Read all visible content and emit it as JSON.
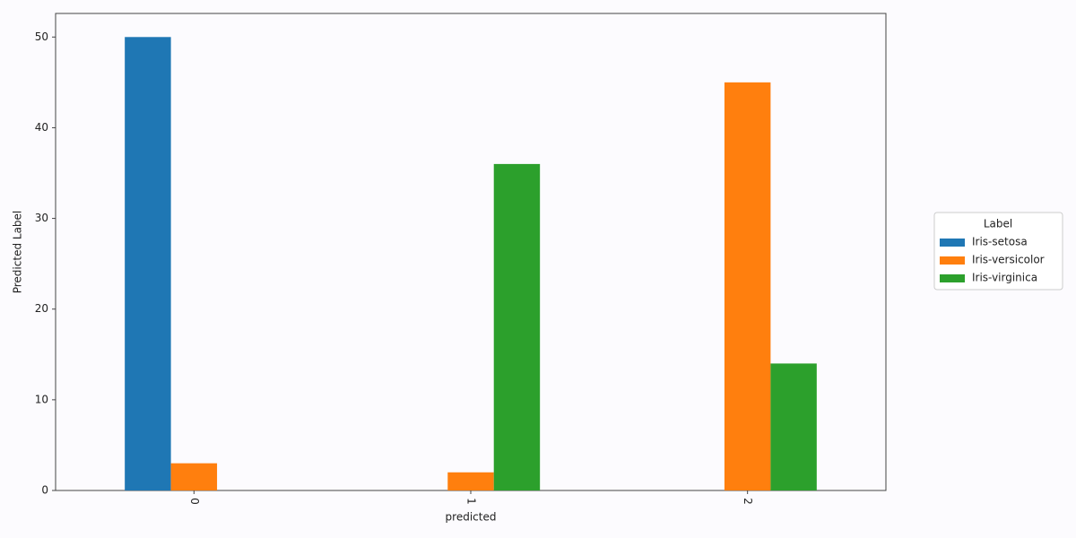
{
  "chart_data": {
    "type": "bar",
    "x_label": "predicted",
    "y_label": "Predicted Label",
    "categories": [
      "0",
      "1",
      "2"
    ],
    "series": [
      {
        "name": "Iris-setosa",
        "color": "#1f77b4",
        "values": [
          50,
          null,
          null
        ]
      },
      {
        "name": "Iris-versicolor",
        "color": "#ff7f0e",
        "values": [
          3,
          2,
          45
        ]
      },
      {
        "name": "Iris-virginica",
        "color": "#2ca02c",
        "values": [
          null,
          36,
          14
        ]
      }
    ],
    "legend_title": "Label",
    "legend_loc": "right",
    "ylim": [
      0,
      52.6
    ],
    "yticks": [
      0,
      10,
      20,
      30,
      40,
      50
    ],
    "grid": false
  }
}
